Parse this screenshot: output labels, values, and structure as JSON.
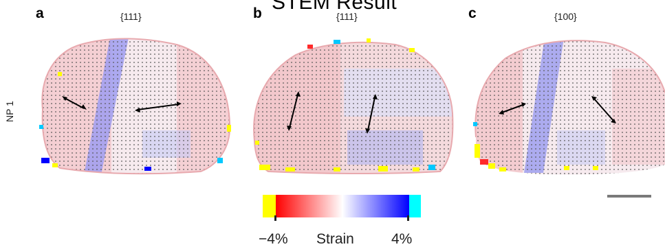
{
  "figure": {
    "title": "STEM Result",
    "row_label": "NP 1",
    "panels": [
      {
        "letter": "a",
        "facet": "{111}"
      },
      {
        "letter": "b",
        "facet": "{111}"
      },
      {
        "letter": "c",
        "facet": "{100}"
      }
    ],
    "colorbar": {
      "title": "Strain",
      "min_label": "−4%",
      "max_label": "4%",
      "colors": {
        "low_saturation": "#ffff00",
        "negative": "#ff0000",
        "neutral": "#ffffff",
        "positive": "#0000ff",
        "high_saturation": "#00ffff"
      }
    }
  }
}
